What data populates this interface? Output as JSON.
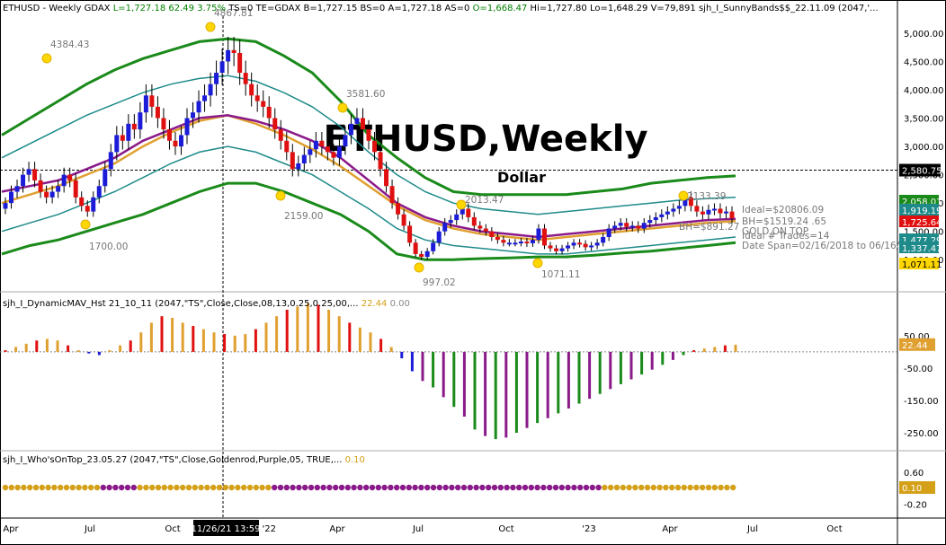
{
  "header": {
    "symbol": "ETHUSD - Weekly",
    "exchange": "GDAX",
    "last": "L=1,727.18",
    "change": "62.49",
    "pct": "3.75%",
    "ts": "TS=0",
    "te": "TE=GDAX",
    "bid": "B=1,727.15",
    "bs": "BS=0",
    "ask": "A=1,727.18",
    "as": "AS=0",
    "open": "O=1,668.47",
    "high": "Hi=1,727.80",
    "low": "Lo=1,648.29",
    "volume": "V=79,891",
    "study": "sjh_I_SunnyBands$$_22.11.09 (2047,'..."
  },
  "watermark": "ETHUSD,Weekly",
  "watermark_sub": "Dollar",
  "price_pane": {
    "annotations": [
      "4384.43",
      "4867.81",
      "3581.60",
      "2159.00",
      "1700.00",
      "2013.47",
      "997.02",
      "1071.11",
      "2133.39"
    ],
    "info_lines": [
      "Ideal=$20806.09",
      "BH=$1519.24 .65",
      "BH=$891.27",
      "GOLD ON TOP",
      "Ideal # Trades=14",
      "Date Span=02/16/2018 to 06/16/20"
    ],
    "crosshair_price": "2,580.75",
    "price_badges": [
      "2,058.01",
      "1,919.19",
      "1,725.64",
      "1,477.29",
      "1,337.47",
      "1,071.11"
    ]
  },
  "mav_pane": {
    "title": "sjh_I_DynamicMAV_Hst 21_10_11 (2047,\"TS\",Close,Close,08,13,0.25,0.25,00,...",
    "v1": "22.44",
    "v2": "0.00",
    "badge": "22.44"
  },
  "wot_pane": {
    "title": "sjh_I_Who'sOnTop_23.05.27 (2047,\"TS\",Close,Goldenrod,Purple,05, TRUE,...",
    "v1": "0.10",
    "badge": "0.10"
  },
  "crosshair_time": "11/26/21 13:59",
  "chart_data": [
    {
      "type": "candlestick",
      "title": "ETHUSD - Weekly",
      "ylim": [
        750,
        5300
      ],
      "y_ticks": [
        "5,000.00",
        "4,500.00",
        "4,000.00",
        "3,500.00",
        "3,000.00",
        "2,500.00",
        "2,000.00",
        "1,500.00",
        "1,000.00"
      ],
      "x_ticks": [
        "Apr",
        "Jul",
        "Oct",
        "Jan '22",
        "Apr",
        "Jul",
        "Oct",
        "'23",
        "Apr",
        "Jul",
        "Oct"
      ],
      "close_path": [
        2000,
        2200,
        2300,
        2500,
        2600,
        2400,
        2200,
        2100,
        2200,
        2300,
        2500,
        2400,
        2100,
        1950,
        1850,
        2100,
        2300,
        2600,
        2900,
        3200,
        3100,
        3400,
        3300,
        3600,
        3900,
        3700,
        3500,
        3300,
        3100,
        3000,
        3200,
        3500,
        3600,
        3800,
        3900,
        4100,
        4300,
        4500,
        4700,
        4650,
        4300,
        4100,
        3900,
        3800,
        3700,
        3500,
        3300,
        3100,
        2900,
        2600,
        2700,
        2850,
        2950,
        3100,
        3000,
        2900,
        2800,
        3000,
        3200,
        3400,
        3500,
        3300,
        3100,
        2900,
        2600,
        2300,
        2000,
        1800,
        1600,
        1300,
        1100,
        1050,
        1150,
        1300,
        1500,
        1650,
        1700,
        1800,
        1900,
        1750,
        1600,
        1550,
        1500,
        1400,
        1350,
        1300,
        1300,
        1300,
        1320,
        1290,
        1350,
        1550,
        1250,
        1200,
        1150,
        1200,
        1250,
        1300,
        1280,
        1220,
        1250,
        1300,
        1400,
        1550,
        1600,
        1650,
        1580,
        1600,
        1550,
        1650,
        1700,
        1750,
        1800,
        1850,
        1900,
        1950,
        2100,
        1950,
        1850,
        1800,
        1880,
        1900,
        1820,
        1850,
        1730
      ],
      "bands": {
        "outer_upper": [
          3200,
          3500,
          3800,
          4100,
          4350,
          4550,
          4700,
          4850,
          4900,
          4850,
          4600,
          4300,
          3800,
          3200,
          2800,
          2450,
          2200,
          2150,
          2150,
          2150,
          2150,
          2200,
          2250,
          2350,
          2400,
          2450,
          2480
        ],
        "mid_upper": [
          2800,
          3050,
          3300,
          3550,
          3750,
          3950,
          4100,
          4200,
          4250,
          4150,
          3950,
          3700,
          3350,
          2900,
          2500,
          2200,
          2000,
          1900,
          1850,
          1800,
          1850,
          1900,
          1950,
          2000,
          2050,
          2080,
          2100
        ],
        "purple": [
          2200,
          2300,
          2400,
          2600,
          2800,
          3100,
          3300,
          3500,
          3550,
          3450,
          3300,
          3100,
          2800,
          2400,
          2000,
          1750,
          1600,
          1500,
          1450,
          1400,
          1450,
          1500,
          1550,
          1600,
          1650,
          1700,
          1720
        ],
        "gold": [
          2000,
          2150,
          2300,
          2500,
          2700,
          3000,
          3250,
          3450,
          3550,
          3400,
          3200,
          2950,
          2650,
          2300,
          1950,
          1700,
          1550,
          1450,
          1400,
          1350,
          1400,
          1450,
          1500,
          1550,
          1600,
          1650,
          1680
        ],
        "mid_lower": [
          1500,
          1650,
          1800,
          2000,
          2200,
          2450,
          2700,
          2900,
          3000,
          2900,
          2700,
          2500,
          2200,
          1900,
          1550,
          1350,
          1250,
          1200,
          1150,
          1100,
          1100,
          1150,
          1200,
          1250,
          1300,
          1350,
          1400
        ],
        "outer_lower": [
          1100,
          1250,
          1350,
          1500,
          1650,
          1800,
          2000,
          2200,
          2350,
          2350,
          2200,
          2000,
          1800,
          1500,
          1100,
          1000,
          1000,
          1020,
          1030,
          1050,
          1050,
          1080,
          1120,
          1150,
          1200,
          1250,
          1300
        ]
      }
    },
    {
      "type": "bar",
      "title": "sjh_I_DynamicMAV_Hst",
      "ylim": [
        -300,
        130
      ],
      "y_ticks": [
        "50.00",
        "-50.00",
        "-150.00",
        "-250.00"
      ],
      "values": [
        5,
        15,
        25,
        35,
        40,
        35,
        20,
        5,
        -5,
        -10,
        5,
        20,
        35,
        60,
        90,
        110,
        105,
        90,
        80,
        70,
        60,
        55,
        50,
        55,
        70,
        90,
        110,
        130,
        140,
        150,
        145,
        130,
        110,
        90,
        75,
        60,
        40,
        15,
        -20,
        -60,
        -90,
        -110,
        -140,
        -170,
        -200,
        -240,
        -260,
        -270,
        -265,
        -250,
        -235,
        -220,
        -205,
        -190,
        -175,
        -160,
        -145,
        -130,
        -115,
        -100,
        -85,
        -70,
        -55,
        -40,
        -25,
        -10,
        5,
        10,
        15,
        20,
        22
      ]
    },
    {
      "type": "line",
      "title": "sjh_I_Who'sOnTop",
      "ylim": [
        -0.5,
        0.8
      ],
      "y_ticks": [
        "0.60",
        "-0.20"
      ],
      "dots": "alternating goldenrod / purple dot row"
    }
  ]
}
